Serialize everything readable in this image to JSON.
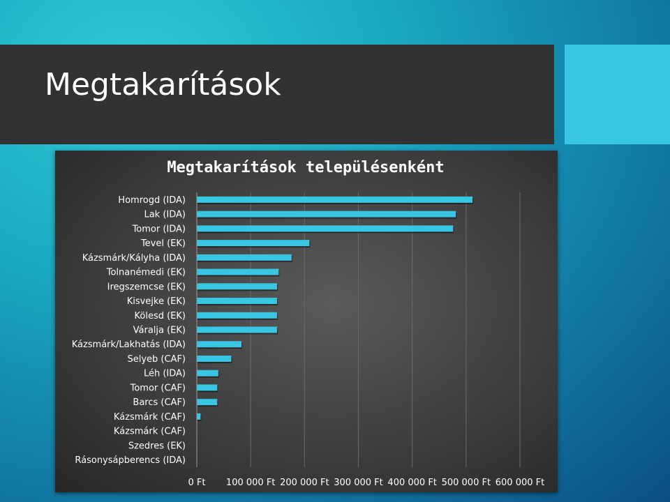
{
  "slide": {
    "title": "Megtakarítások"
  },
  "colors": {
    "bar": "#38c6e3",
    "title_band": "#323232",
    "accent": "#38c6e3"
  },
  "chart_data": {
    "type": "bar",
    "orientation": "horizontal",
    "title": "Megtakarítások településenként",
    "categories": [
      "Homrogd (IDA)",
      "Lak (IDA)",
      "Tomor (IDA)",
      "Tevel (EK)",
      "Kázsmárk/Kályha (IDA)",
      "Tolnanémedi (EK)",
      "Iregszemcse (EK)",
      "Kisvejke (EK)",
      "Kölesd (EK)",
      "Váralja (EK)",
      "Kázsmárk/Lakhatás (IDA)",
      "Selyeb (CAF)",
      "Léh (IDA)",
      "Tomor (CAF)",
      "Barcs (CAF)",
      "Kázsmárk (CAF)",
      "Kázsmárk (CAF)",
      "Szedres (EK)",
      "Rásonysápberencs (IDA)"
    ],
    "values": [
      512000,
      481000,
      476000,
      209000,
      176000,
      152000,
      149000,
      149000,
      149000,
      149000,
      83000,
      64000,
      40000,
      38000,
      38000,
      7000,
      0,
      0,
      0
    ],
    "xlim": [
      0,
      600000
    ],
    "xticks": [
      0,
      100000,
      200000,
      300000,
      400000,
      500000,
      600000
    ],
    "xtick_labels": [
      "0 Ft",
      "100 000 Ft",
      "200 000 Ft",
      "300 000 Ft",
      "400 000 Ft",
      "500 000 Ft",
      "600 000 Ft"
    ],
    "grid": true,
    "legend": "none"
  }
}
